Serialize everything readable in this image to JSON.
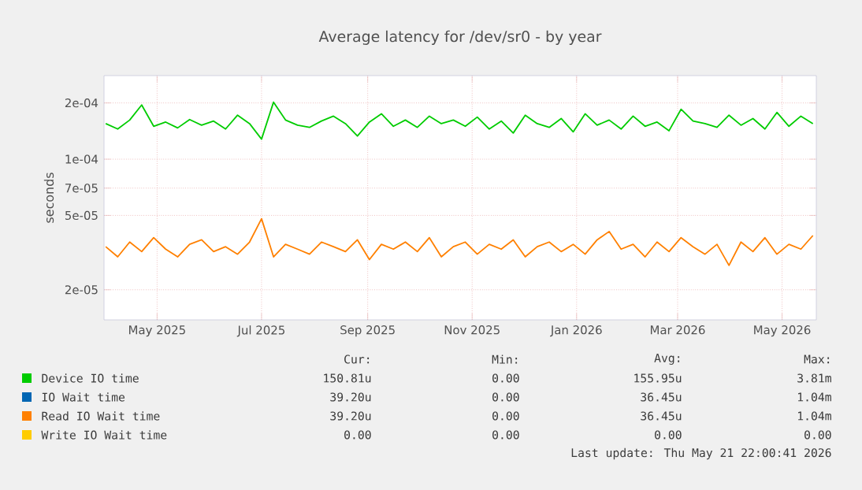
{
  "chart_data": {
    "type": "line",
    "title": "Average latency for /dev/sr0 - by year",
    "ylabel": "seconds",
    "log": "y",
    "grid": true,
    "legend": "bottom",
    "line_style": "solid",
    "marker": "none",
    "xlim": [
      "2025-03-31",
      "2026-05-21"
    ],
    "xticks": [
      {
        "value": "2025-05-01",
        "label": "May 2025"
      },
      {
        "value": "2025-07-01",
        "label": "Jul 2025"
      },
      {
        "value": "2025-09-01",
        "label": "Sep 2025"
      },
      {
        "value": "2025-11-01",
        "label": "Nov 2025"
      },
      {
        "value": "2026-01-01",
        "label": "Jan 2026"
      },
      {
        "value": "2026-03-01",
        "label": "Mar 2026"
      },
      {
        "value": "2026-05-01",
        "label": "May 2026"
      }
    ],
    "ylim": [
      1.38e-05,
      0.00028
    ],
    "yticks": [
      {
        "value": 2e-05,
        "label": "2e-05"
      },
      {
        "value": 5e-05,
        "label": "5e-05"
      },
      {
        "value": 7e-05,
        "label": "7e-05"
      },
      {
        "value": 0.0001,
        "label": "1e-04"
      },
      {
        "value": 0.0002,
        "label": "2e-04"
      }
    ],
    "x": [
      "2025-04-01",
      "2025-04-08",
      "2025-04-15",
      "2025-04-22",
      "2025-04-29",
      "2025-05-06",
      "2025-05-13",
      "2025-05-20",
      "2025-05-27",
      "2025-06-03",
      "2025-06-10",
      "2025-06-17",
      "2025-06-24",
      "2025-07-01",
      "2025-07-08",
      "2025-07-15",
      "2025-07-22",
      "2025-07-29",
      "2025-08-05",
      "2025-08-12",
      "2025-08-19",
      "2025-08-26",
      "2025-09-02",
      "2025-09-09",
      "2025-09-16",
      "2025-09-23",
      "2025-09-30",
      "2025-10-07",
      "2025-10-14",
      "2025-10-21",
      "2025-10-28",
      "2025-11-04",
      "2025-11-11",
      "2025-11-18",
      "2025-11-25",
      "2025-12-02",
      "2025-12-09",
      "2025-12-16",
      "2025-12-23",
      "2025-12-30",
      "2026-01-06",
      "2026-01-13",
      "2026-01-20",
      "2026-01-27",
      "2026-02-03",
      "2026-02-10",
      "2026-02-17",
      "2026-02-24",
      "2026-03-03",
      "2026-03-10",
      "2026-03-17",
      "2026-03-24",
      "2026-03-31",
      "2026-04-07",
      "2026-04-14",
      "2026-04-21",
      "2026-04-28",
      "2026-05-05",
      "2026-05-12",
      "2026-05-19"
    ],
    "series": [
      {
        "name": "Device IO time",
        "color": "#00cc00",
        "values": [
          0.000155,
          0.000145,
          0.000162,
          0.000195,
          0.00015,
          0.000158,
          0.000147,
          0.000163,
          0.000152,
          0.00016,
          0.000145,
          0.000172,
          0.000155,
          0.000128,
          0.000202,
          0.000162,
          0.000152,
          0.000148,
          0.00016,
          0.00017,
          0.000155,
          0.000133,
          0.000158,
          0.000175,
          0.00015,
          0.000162,
          0.000148,
          0.00017,
          0.000155,
          0.000162,
          0.00015,
          0.000168,
          0.000145,
          0.00016,
          0.000138,
          0.000172,
          0.000155,
          0.000148,
          0.000165,
          0.00014,
          0.000175,
          0.000152,
          0.000162,
          0.000145,
          0.00017,
          0.00015,
          0.000158,
          0.000142,
          0.000185,
          0.00016,
          0.000155,
          0.000148,
          0.000172,
          0.000152,
          0.000165,
          0.000145,
          0.000178,
          0.00015,
          0.00017,
          0.000155
        ]
      },
      {
        "name": "IO Wait time",
        "color": "#0066b3",
        "values": [
          null,
          null,
          null,
          null,
          null,
          null,
          null,
          null,
          null,
          null,
          null,
          null,
          null,
          null,
          null,
          null,
          null,
          null,
          null,
          null,
          null,
          null,
          null,
          null,
          null,
          null,
          null,
          null,
          null,
          null,
          null,
          null,
          null,
          null,
          null,
          null,
          null,
          null,
          null,
          null,
          null,
          null,
          null,
          null,
          null,
          null,
          null,
          null,
          null,
          null,
          null,
          null,
          null,
          null,
          null,
          null,
          null,
          null,
          null,
          null
        ]
      },
      {
        "name": "Read IO Wait time",
        "color": "#ff8000",
        "values": [
          3.4e-05,
          3e-05,
          3.6e-05,
          3.2e-05,
          3.8e-05,
          3.3e-05,
          3e-05,
          3.5e-05,
          3.7e-05,
          3.2e-05,
          3.4e-05,
          3.1e-05,
          3.6e-05,
          4.8e-05,
          3e-05,
          3.5e-05,
          3.3e-05,
          3.1e-05,
          3.6e-05,
          3.4e-05,
          3.2e-05,
          3.7e-05,
          2.9e-05,
          3.5e-05,
          3.3e-05,
          3.6e-05,
          3.2e-05,
          3.8e-05,
          3e-05,
          3.4e-05,
          3.6e-05,
          3.1e-05,
          3.5e-05,
          3.3e-05,
          3.7e-05,
          3e-05,
          3.4e-05,
          3.6e-05,
          3.2e-05,
          3.5e-05,
          3.1e-05,
          3.7e-05,
          4.1e-05,
          3.3e-05,
          3.5e-05,
          3e-05,
          3.6e-05,
          3.2e-05,
          3.8e-05,
          3.4e-05,
          3.1e-05,
          3.5e-05,
          2.7e-05,
          3.6e-05,
          3.2e-05,
          3.8e-05,
          3.1e-05,
          3.5e-05,
          3.3e-05,
          3.9e-05
        ]
      },
      {
        "name": "Write IO Wait time",
        "color": "#ffcc00",
        "values": [
          null,
          null,
          null,
          null,
          null,
          null,
          null,
          null,
          null,
          null,
          null,
          null,
          null,
          null,
          null,
          null,
          null,
          null,
          null,
          null,
          null,
          null,
          null,
          null,
          null,
          null,
          null,
          null,
          null,
          null,
          null,
          null,
          null,
          null,
          null,
          null,
          null,
          null,
          null,
          null,
          null,
          null,
          null,
          null,
          null,
          null,
          null,
          null,
          null,
          null,
          null,
          null,
          null,
          null,
          null,
          null,
          null,
          null,
          null,
          null
        ]
      }
    ],
    "annotations": [
      "Cur:",
      "Min:",
      "Avg:",
      "Max:",
      "150.81u",
      "0.00",
      "155.95u",
      "3.81m",
      "39.20u",
      "0.00",
      "36.45u",
      "1.04m",
      "39.20u",
      "0.00",
      "36.45u",
      "1.04m",
      "0.00",
      "0.00",
      "0.00",
      "0.00",
      "Last update: Thu May 21 22:00:41 2026"
    ]
  }
}
